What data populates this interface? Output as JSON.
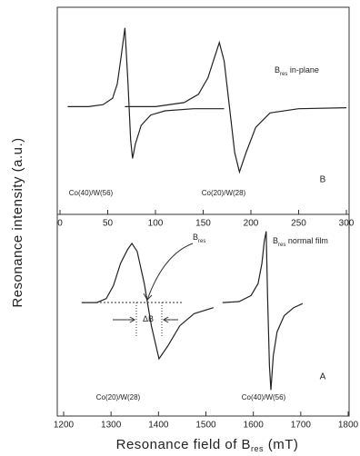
{
  "figure": {
    "ylabel": "Resonance intensity (a.u.)",
    "xlabel": {
      "text": "Resonance field of B",
      "sub": "res",
      "suffix": " (mT)"
    }
  },
  "chart_data": [
    {
      "type": "line",
      "panel": "B",
      "xlim": [
        0,
        300
      ],
      "xticks": [
        0,
        50,
        100,
        150,
        200,
        250,
        300
      ],
      "ylim": [
        0,
        10
      ],
      "series": [
        {
          "name": "Co(40)/W(56)",
          "color": "#222",
          "x": [
            8,
            30,
            45,
            55,
            60,
            64,
            68,
            71,
            74,
            76,
            79,
            85,
            95,
            110,
            140,
            172
          ],
          "values": [
            5.2,
            5.2,
            5.3,
            5.6,
            6.3,
            7.6,
            9.0,
            6.5,
            3.6,
            2.7,
            3.4,
            4.3,
            4.8,
            5.0,
            5.1,
            5.1
          ]
        },
        {
          "name": "Co(20)/W(28)",
          "color": "#222",
          "x": [
            68,
            100,
            130,
            145,
            155,
            162,
            167,
            172,
            178,
            183,
            188,
            195,
            205,
            220,
            250,
            300
          ],
          "values": [
            5.2,
            5.2,
            5.4,
            5.8,
            6.6,
            7.6,
            8.3,
            7.4,
            5.0,
            3.0,
            2.05,
            3.0,
            4.2,
            4.9,
            5.1,
            5.15
          ]
        }
      ],
      "annotations": [
        {
          "text": "B",
          "sub": "res",
          "suffix": " in-plane"
        }
      ]
    },
    {
      "type": "line",
      "panel": "A",
      "xlim": [
        1200,
        1800
      ],
      "xticks": [
        1200,
        1300,
        1400,
        1500,
        1600,
        1700,
        1800
      ],
      "ylim": [
        0,
        10
      ],
      "series": [
        {
          "name": "Co(20)/W(28)",
          "color": "#222",
          "x": [
            1238,
            1270,
            1290,
            1305,
            1320,
            1335,
            1344,
            1355,
            1370,
            1385,
            1401,
            1420,
            1445,
            1475,
            1516
          ],
          "values": [
            5.65,
            5.65,
            5.85,
            6.5,
            7.6,
            8.3,
            8.6,
            8.2,
            6.6,
            4.5,
            2.85,
            3.5,
            4.5,
            5.1,
            5.4
          ]
        },
        {
          "name": "Co(40)/W(56)",
          "color": "#222",
          "x": [
            1535,
            1570,
            1595,
            1610,
            1618,
            1623,
            1627,
            1630,
            1634,
            1637,
            1642,
            1650,
            1665,
            1685,
            1704
          ],
          "values": [
            5.65,
            5.7,
            6.0,
            6.6,
            7.6,
            8.7,
            9.2,
            6.0,
            2.5,
            1.3,
            3.0,
            4.2,
            5.0,
            5.4,
            5.6
          ]
        }
      ],
      "annotations": [
        {
          "text": "B",
          "sub": "res",
          "suffix": " normal film"
        },
        {
          "text": "B",
          "sub": "res",
          "suffix": ""
        },
        {
          "text": "ΔB",
          "sub": "",
          "suffix": ""
        }
      ]
    }
  ]
}
